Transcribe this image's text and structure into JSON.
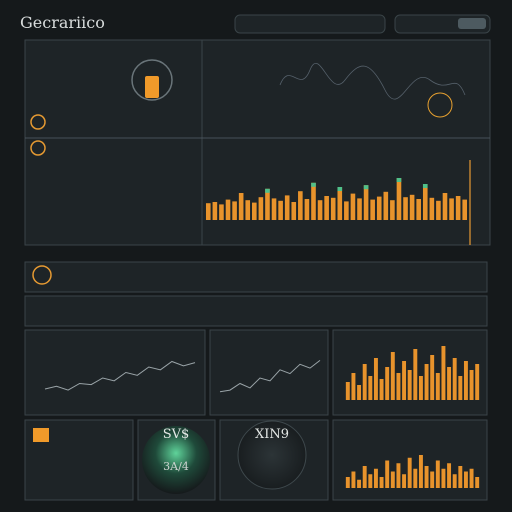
{
  "header": {
    "title": "Gecrariico"
  },
  "gauges": [
    {
      "label": "SV$",
      "sub": "3A/4"
    },
    {
      "label": "XIN9"
    }
  ],
  "charts": {
    "main_bars": [
      28,
      30,
      26,
      34,
      31,
      45,
      33,
      29,
      38,
      52,
      36,
      32,
      41,
      30,
      48,
      35,
      62,
      33,
      40,
      37,
      55,
      31,
      44,
      36,
      58,
      34,
      39,
      47,
      33,
      70,
      38,
      42,
      35,
      60,
      37,
      32,
      45,
      36,
      40,
      34
    ],
    "line_1": [
      20,
      25,
      18,
      30,
      28,
      40,
      35,
      50,
      45,
      60,
      55,
      70,
      62,
      68
    ],
    "line_2": [
      15,
      18,
      30,
      22,
      40,
      35,
      55,
      48,
      65,
      58,
      72
    ],
    "panel_bars_1": [
      30,
      45,
      25,
      60,
      40,
      70,
      35,
      55,
      80,
      45,
      65,
      50,
      85,
      40,
      60,
      75,
      45,
      90,
      55,
      70,
      40,
      65,
      50,
      60
    ],
    "panel_bars_2": [
      20,
      30,
      15,
      40,
      25,
      35,
      20,
      50,
      30,
      45,
      25,
      55,
      35,
      60,
      40,
      30,
      50,
      35,
      45,
      25,
      40,
      30,
      35,
      20
    ]
  }
}
